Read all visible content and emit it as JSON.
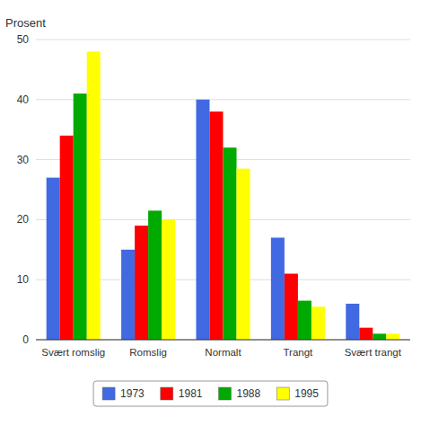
{
  "chart_data": {
    "type": "bar",
    "ylabel": "Prosent",
    "categories": [
      "Svært romslig",
      "Romslig",
      "Normalt",
      "Trangt",
      "Svært trangt"
    ],
    "series": [
      {
        "name": "1973",
        "color": "#4169E1",
        "values": [
          27,
          15,
          40,
          17,
          6
        ]
      },
      {
        "name": "1981",
        "color": "#FF0000",
        "values": [
          34,
          19,
          38,
          11,
          2
        ]
      },
      {
        "name": "1988",
        "color": "#00AA00",
        "values": [
          41,
          21.5,
          32,
          6.5,
          1
        ]
      },
      {
        "name": "1995",
        "color": "#FFFF00",
        "values": [
          48,
          20,
          28.5,
          5.5,
          1
        ]
      }
    ],
    "ylim": [
      0,
      50
    ],
    "yticks": [
      0,
      10,
      20,
      30,
      40,
      50
    ],
    "grid": true,
    "legend": "bottom"
  }
}
